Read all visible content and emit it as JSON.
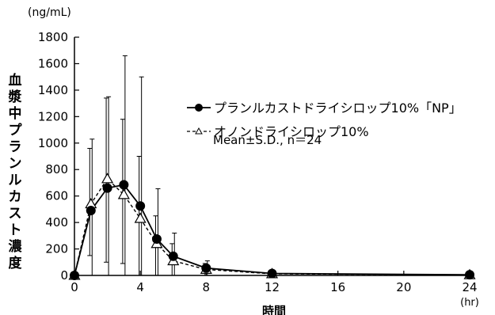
{
  "chart_data": {
    "type": "line",
    "unit_label": "(ng/mL)",
    "xlabel": "時間",
    "xunit": "(hr)",
    "ylabel": "血漿中プランルカスト濃度",
    "xlim": [
      0,
      24
    ],
    "ylim": [
      0,
      1800
    ],
    "x_ticks": [
      0,
      4,
      8,
      12,
      16,
      20,
      24
    ],
    "y_ticks": [
      0,
      200,
      400,
      600,
      800,
      1000,
      1200,
      1400,
      1600,
      1800
    ],
    "annotation": "Mean±S.D., n＝24",
    "series": [
      {
        "name": "プランルカストドライシロップ10%「NP」",
        "marker": "filled-circle",
        "line": "solid",
        "x": [
          0,
          1,
          2,
          3,
          4,
          5,
          6,
          8,
          12,
          24
        ],
        "y": [
          0,
          490,
          660,
          685,
          525,
          275,
          145,
          55,
          15,
          5
        ],
        "err_low": [
          0,
          0,
          0,
          0,
          0,
          0,
          0,
          0,
          0,
          0
        ],
        "err_high": [
          0,
          1030,
          1350,
          1660,
          1500,
          655,
          320,
          110,
          25,
          8
        ]
      },
      {
        "name": "オノンドライシロップ10%",
        "marker": "open-triangle",
        "line": "dashed",
        "x": [
          0,
          1,
          2,
          3,
          4,
          5,
          6,
          8,
          12,
          24
        ],
        "y": [
          0,
          540,
          730,
          610,
          430,
          240,
          110,
          45,
          12,
          4
        ],
        "err_low": [
          0,
          150,
          100,
          90,
          0,
          0,
          0,
          0,
          0,
          0
        ],
        "err_high": [
          0,
          960,
          1340,
          1180,
          900,
          450,
          240,
          90,
          20,
          7
        ]
      }
    ]
  }
}
